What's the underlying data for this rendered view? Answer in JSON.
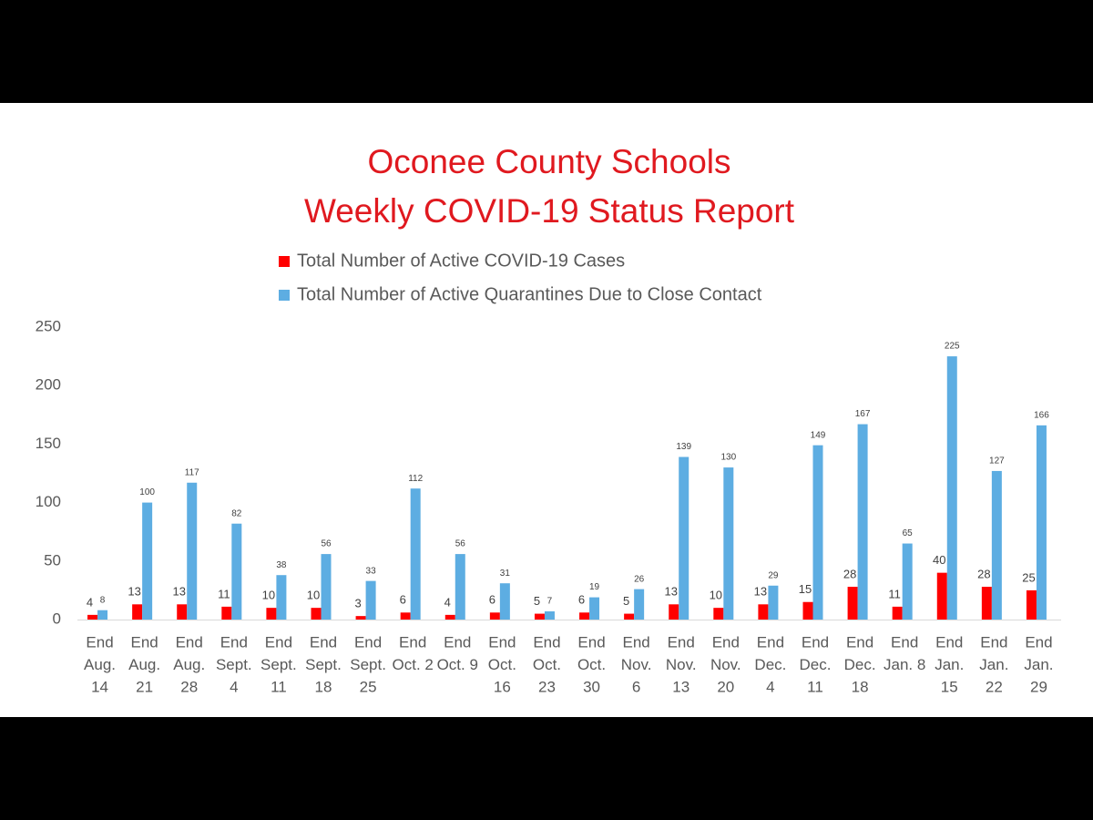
{
  "chart_data": {
    "type": "bar",
    "title": [
      "Oconee County Schools",
      "Weekly COVID-19 Status Report"
    ],
    "categories": [
      [
        "End",
        "Aug.",
        "14"
      ],
      [
        "End",
        "Aug.",
        "21"
      ],
      [
        "End",
        "Aug.",
        "28"
      ],
      [
        "End",
        "Sept.",
        "4"
      ],
      [
        "End",
        "Sept.",
        "11"
      ],
      [
        "End",
        "Sept.",
        "18"
      ],
      [
        "End",
        "Sept.",
        "25"
      ],
      [
        "End",
        "Oct. 2"
      ],
      [
        "End",
        "Oct. 9"
      ],
      [
        "End",
        "Oct.",
        "16"
      ],
      [
        "End",
        "Oct.",
        "23"
      ],
      [
        "End",
        "Oct.",
        "30"
      ],
      [
        "End",
        "Nov.",
        "6"
      ],
      [
        "End",
        "Nov.",
        "13"
      ],
      [
        "End",
        "Nov.",
        "20"
      ],
      [
        "End",
        "Dec.",
        "4"
      ],
      [
        "End",
        "Dec.",
        "11"
      ],
      [
        "End",
        "Dec.",
        "18"
      ],
      [
        "End",
        "Jan. 8"
      ],
      [
        "End",
        "Jan.",
        "15"
      ],
      [
        "End",
        "Jan.",
        "22"
      ],
      [
        "End",
        "Jan.",
        "29"
      ]
    ],
    "series": [
      {
        "name": "Total Number of Active COVID-19 Cases",
        "color": "#ff0000",
        "values": [
          4,
          13,
          13,
          11,
          10,
          10,
          3,
          6,
          4,
          6,
          5,
          6,
          5,
          13,
          10,
          13,
          15,
          28,
          11,
          40,
          28,
          25
        ]
      },
      {
        "name": "Total Number of Active Quarantines Due to Close Contact",
        "color": "#5dade2",
        "values": [
          8,
          100,
          117,
          82,
          38,
          56,
          33,
          112,
          56,
          31,
          7,
          19,
          26,
          139,
          130,
          29,
          149,
          167,
          65,
          225,
          127,
          166
        ]
      }
    ],
    "ylim": [
      0,
      250
    ],
    "yticks": [
      0,
      50,
      100,
      150,
      200,
      250
    ],
    "grid": false
  }
}
